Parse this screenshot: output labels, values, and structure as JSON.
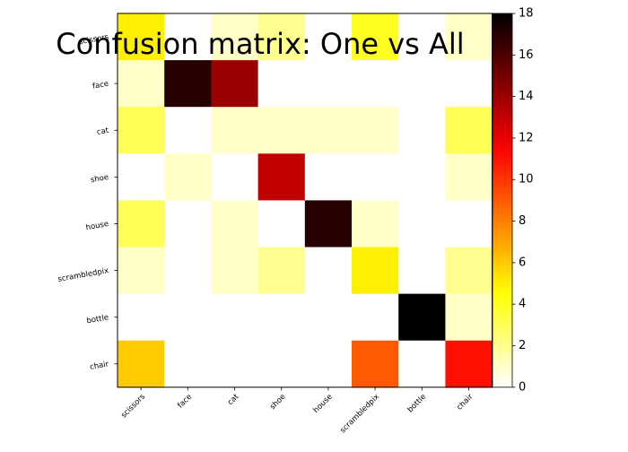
{
  "chart_data": {
    "type": "heatmap",
    "title": "Confusion matrix: One vs All",
    "xlabel": "",
    "ylabel": "",
    "row_labels": [
      "scissors",
      "face",
      "cat",
      "shoe",
      "house",
      "scrambledpix",
      "bottle",
      "chair"
    ],
    "col_labels": [
      "scissors",
      "face",
      "cat",
      "shoe",
      "house",
      "scrambledpix",
      "bottle",
      "chair"
    ],
    "matrix": [
      [
        5,
        0,
        1,
        2,
        0,
        4,
        0,
        1
      ],
      [
        1,
        17,
        14,
        0,
        0,
        0,
        0,
        0
      ],
      [
        3,
        0,
        1,
        1,
        1,
        1,
        0,
        3
      ],
      [
        0,
        1,
        0,
        13,
        0,
        0,
        0,
        1
      ],
      [
        3,
        0,
        1,
        0,
        17,
        1,
        0,
        0
      ],
      [
        1,
        0,
        1,
        2,
        0,
        5,
        0,
        2
      ],
      [
        0,
        0,
        0,
        0,
        0,
        0,
        18,
        1
      ],
      [
        6,
        0,
        0,
        0,
        0,
        9,
        0,
        11
      ]
    ],
    "colormap": "hot_r",
    "colorbar": {
      "min": 0,
      "max": 18,
      "ticks": [
        0,
        2,
        4,
        6,
        8,
        10,
        12,
        14,
        16,
        18
      ]
    },
    "grid": false
  }
}
